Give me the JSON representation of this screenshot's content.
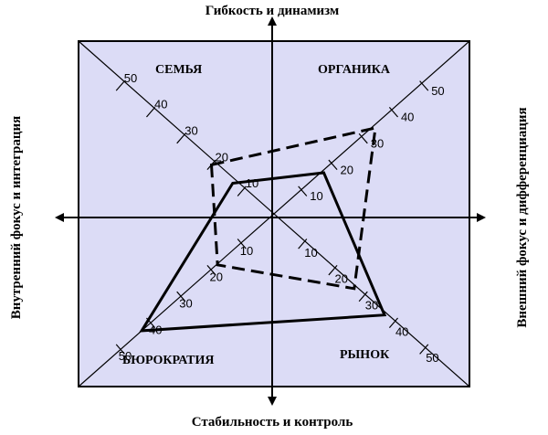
{
  "axes": {
    "top": "Гибкость и динамизм",
    "bottom": "Стабильность и контроль",
    "left": "Внутренний фокус и интеграция",
    "right": "Внешний фокус и дифференциация"
  },
  "quadrants": {
    "top_left": "СЕМЬЯ",
    "top_right": "ОРГАНИКА",
    "bottom_left": "БЮРОКРАТИЯ",
    "bottom_right": "РЫНОК"
  },
  "scale_ticks": [
    "10",
    "20",
    "30",
    "40",
    "50"
  ],
  "profiles": [
    {
      "style": "solid",
      "values": {
        "semya": 13,
        "organika": 17,
        "rynok": 37,
        "byurokratiya": 43
      }
    },
    {
      "style": "dashed",
      "values": {
        "semya": 20,
        "organika": 34,
        "rynok": 27,
        "byurokratiya": 18
      }
    }
  ],
  "colors": {
    "panel": "#dcdcf6",
    "line": "#000000"
  }
}
